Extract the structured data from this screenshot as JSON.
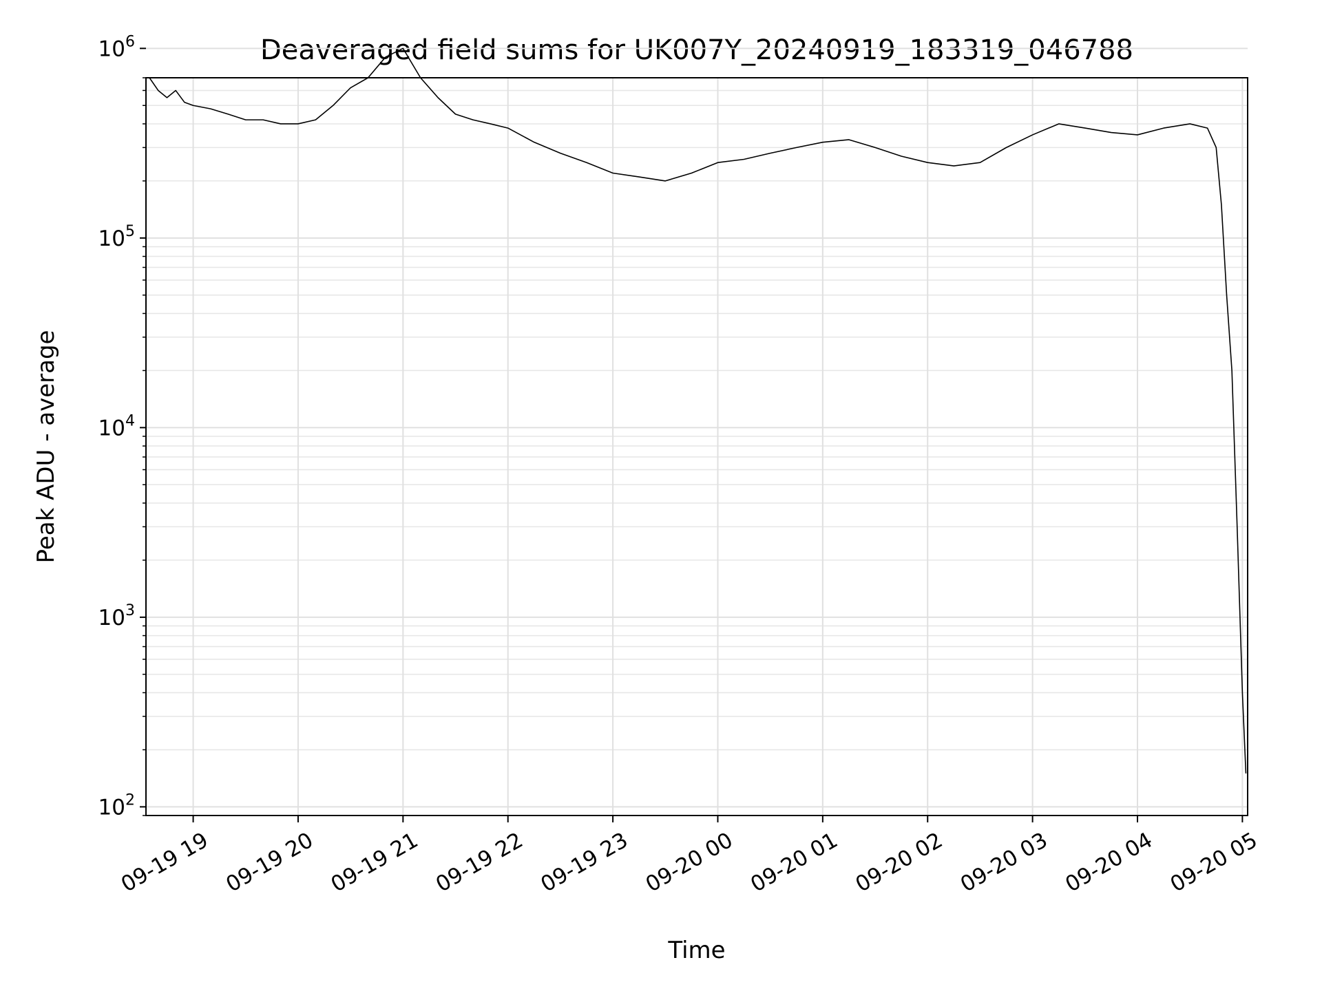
{
  "chart_data": {
    "type": "line",
    "title": "Deaveraged field sums for UK007Y_20240919_183319_046788",
    "xlabel": "Time",
    "ylabel": "Peak ADU - average",
    "yscale": "log",
    "ylim": [
      90,
      700000
    ],
    "xlim": [
      "2024-09-19 18:33",
      "2024-09-20 05:03"
    ],
    "grid": true,
    "line_color": "#000000",
    "x_ticks": [
      {
        "label": "09-19 19",
        "time": "2024-09-19 19:00"
      },
      {
        "label": "09-19 20",
        "time": "2024-09-19 20:00"
      },
      {
        "label": "09-19 21",
        "time": "2024-09-19 21:00"
      },
      {
        "label": "09-19 22",
        "time": "2024-09-19 22:00"
      },
      {
        "label": "09-19 23",
        "time": "2024-09-19 23:00"
      },
      {
        "label": "09-20 00",
        "time": "2024-09-20 00:00"
      },
      {
        "label": "09-20 01",
        "time": "2024-09-20 01:00"
      },
      {
        "label": "09-20 02",
        "time": "2024-09-20 02:00"
      },
      {
        "label": "09-20 03",
        "time": "2024-09-20 03:00"
      },
      {
        "label": "09-20 04",
        "time": "2024-09-20 04:00"
      },
      {
        "label": "09-20 05",
        "time": "2024-09-20 05:00"
      }
    ],
    "y_ticks": [
      {
        "base": "10",
        "exp": "2",
        "value": 100
      },
      {
        "base": "10",
        "exp": "3",
        "value": 1000
      },
      {
        "base": "10",
        "exp": "4",
        "value": 10000
      },
      {
        "base": "10",
        "exp": "5",
        "value": 100000
      },
      {
        "base": "10",
        "exp": "6",
        "value": 1000000
      }
    ],
    "series": [
      {
        "x": [
          "2024-09-19 18:35",
          "2024-09-19 18:40",
          "2024-09-19 18:45",
          "2024-09-19 18:50",
          "2024-09-19 18:55",
          "2024-09-19 19:00",
          "2024-09-19 19:10",
          "2024-09-19 19:20",
          "2024-09-19 19:30",
          "2024-09-19 19:40",
          "2024-09-19 19:50",
          "2024-09-19 20:00",
          "2024-09-19 20:10",
          "2024-09-19 20:20",
          "2024-09-19 20:30",
          "2024-09-19 20:40",
          "2024-09-19 20:50",
          "2024-09-19 21:00",
          "2024-09-19 21:10",
          "2024-09-19 21:20",
          "2024-09-19 21:30",
          "2024-09-19 21:40",
          "2024-09-19 21:50",
          "2024-09-19 22:00",
          "2024-09-19 22:15",
          "2024-09-19 22:30",
          "2024-09-19 22:45",
          "2024-09-19 23:00",
          "2024-09-19 23:15",
          "2024-09-19 23:30",
          "2024-09-19 23:45",
          "2024-09-20 00:00",
          "2024-09-20 00:15",
          "2024-09-20 00:30",
          "2024-09-20 00:45",
          "2024-09-20 01:00",
          "2024-09-20 01:15",
          "2024-09-20 01:30",
          "2024-09-20 01:45",
          "2024-09-20 02:00",
          "2024-09-20 02:15",
          "2024-09-20 02:30",
          "2024-09-20 02:45",
          "2024-09-20 03:00",
          "2024-09-20 03:15",
          "2024-09-20 03:30",
          "2024-09-20 03:45",
          "2024-09-20 04:00",
          "2024-09-20 04:15",
          "2024-09-20 04:30",
          "2024-09-20 04:40",
          "2024-09-20 04:45",
          "2024-09-20 04:48",
          "2024-09-20 04:51",
          "2024-09-20 04:54",
          "2024-09-20 04:57",
          "2024-09-20 05:00",
          "2024-09-20 05:02"
        ],
        "y": [
          700000,
          600000,
          550000,
          600000,
          520000,
          500000,
          480000,
          450000,
          420000,
          420000,
          400000,
          400000,
          420000,
          500000,
          620000,
          700000,
          900000,
          1000000,
          700000,
          550000,
          450000,
          420000,
          400000,
          380000,
          320000,
          280000,
          250000,
          220000,
          210000,
          200000,
          220000,
          250000,
          260000,
          280000,
          300000,
          320000,
          330000,
          300000,
          270000,
          250000,
          240000,
          250000,
          300000,
          350000,
          400000,
          380000,
          360000,
          350000,
          380000,
          400000,
          380000,
          300000,
          150000,
          50000,
          20000,
          3000,
          400,
          150
        ]
      }
    ]
  }
}
